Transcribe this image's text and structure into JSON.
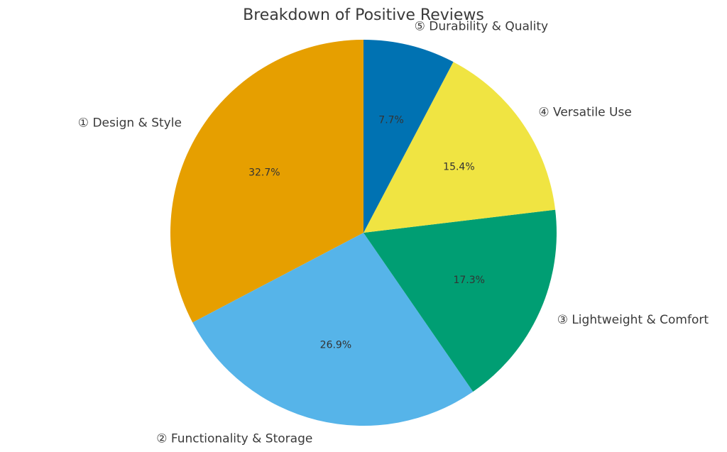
{
  "chart_data": {
    "type": "pie",
    "title": "Breakdown of Positive Reviews",
    "start_angle_deg": 90,
    "direction": "counterclockwise",
    "slices": [
      {
        "label": "① Design & Style",
        "value": 32.7,
        "pct_label": "32.7%",
        "color": "#E69F00"
      },
      {
        "label": "② Functionality & Storage",
        "value": 26.9,
        "pct_label": "26.9%",
        "color": "#56B4E9"
      },
      {
        "label": "③ Lightweight & Comfort",
        "value": 17.3,
        "pct_label": "17.3%",
        "color": "#009E73"
      },
      {
        "label": "④ Versatile Use",
        "value": 15.4,
        "pct_label": "15.4%",
        "color": "#F0E442"
      },
      {
        "label": "⑤ Durability & Quality",
        "value": 7.7,
        "pct_label": "7.7%",
        "color": "#0072B2"
      }
    ]
  }
}
